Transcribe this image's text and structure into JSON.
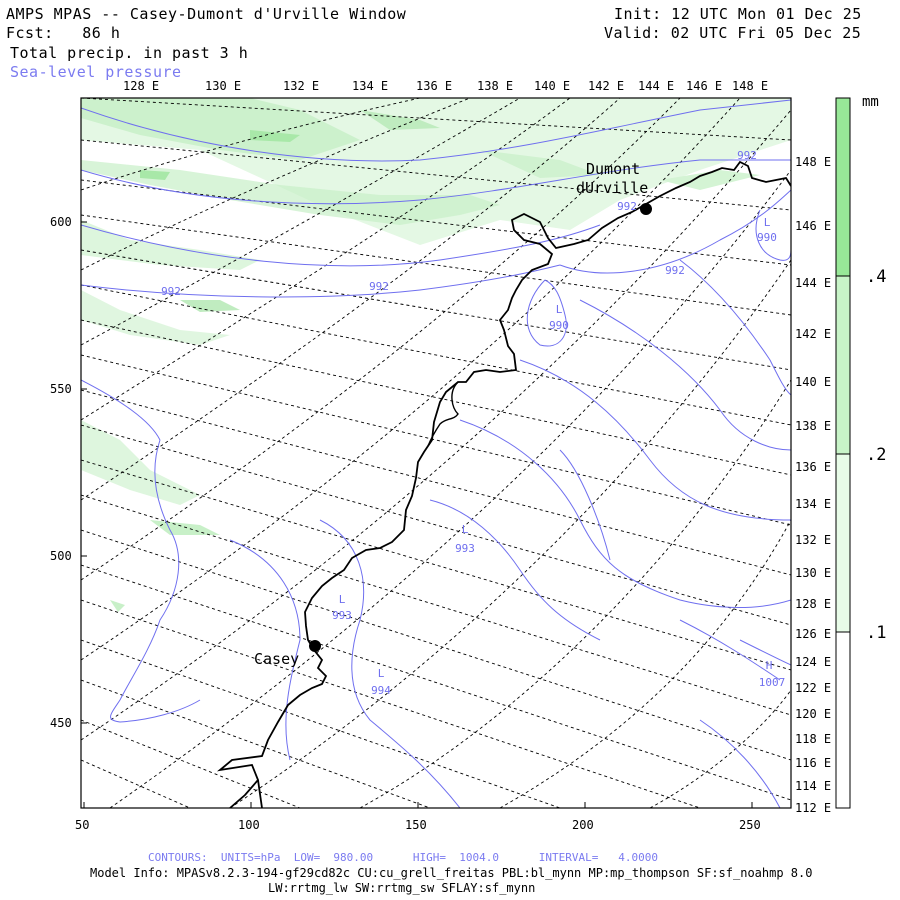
{
  "header": {
    "title": "AMPS MPAS -- Casey-Dumont d'Urville Window",
    "fcst": "Fcst:   86 h",
    "field1": "Total precip. in past 3 h",
    "field2": "Sea-level pressure",
    "init": "Init: 12 UTC Mon 01 Dec 25",
    "valid": "Valid: 02 UTC Fri 05 Dec 25"
  },
  "map": {
    "top_lon_labels": [
      "128 E",
      "130 E",
      "132 E",
      "134 E",
      "136 E",
      "138 E",
      "140 E",
      "142 E",
      "144 E",
      "146 E",
      "148 E"
    ],
    "right_lon_labels": [
      "148 E",
      "146 E",
      "144 E",
      "142 E",
      "140 E",
      "138 E",
      "136 E",
      "134 E",
      "132 E",
      "130 E",
      "128 E",
      "126 E",
      "124 E",
      "122 E",
      "120 E",
      "118 E",
      "116 E",
      "114 E",
      "112 E"
    ],
    "x_axis_labels": [
      "50",
      "100",
      "150",
      "200",
      "250"
    ],
    "y_axis_labels": [
      "600",
      "550",
      "500",
      "450"
    ],
    "stations": [
      {
        "name_line1": "Dumont",
        "name_line2": "dUrville"
      },
      {
        "name_line1": "Casey",
        "name_line2": ""
      }
    ],
    "pressure_labels": [
      {
        "text": "992"
      },
      {
        "text": "992"
      },
      {
        "text": "992"
      },
      {
        "text": "992"
      },
      {
        "text": "992"
      },
      {
        "text": "990",
        "center": "L"
      },
      {
        "text": "990",
        "center": "L"
      },
      {
        "text": "993",
        "center": "L"
      },
      {
        "text": "993",
        "center": "L"
      },
      {
        "text": "994",
        "center": "L"
      },
      {
        "text": "1007",
        "center": "H"
      }
    ]
  },
  "colorbar": {
    "units": "mm",
    "levels": [
      ".4",
      ".2",
      ".1"
    ],
    "colors": [
      "#98e898",
      "#c8f4c8",
      "#e8fce8",
      "#ffffff"
    ]
  },
  "footer": {
    "contours": "CONTOURS:  UNITS=hPa  LOW=  980.00      HIGH=  1004.0      INTERVAL=   4.0000",
    "model_info": "Model Info: MPASv8.2.3-194-gf29cd82c CU:cu_grell_freitas PBL:bl_mynn MP:mp_thompson SF:sf_noahmp 8.0",
    "physics": "LW:rrtmg_lw SW:rrtmg_sw SFLAY:sf_mynn"
  },
  "colors": {
    "isobar": "#6f6fef",
    "precip_light": "#d8f4d8",
    "precip_mid": "#b8ecb8"
  }
}
